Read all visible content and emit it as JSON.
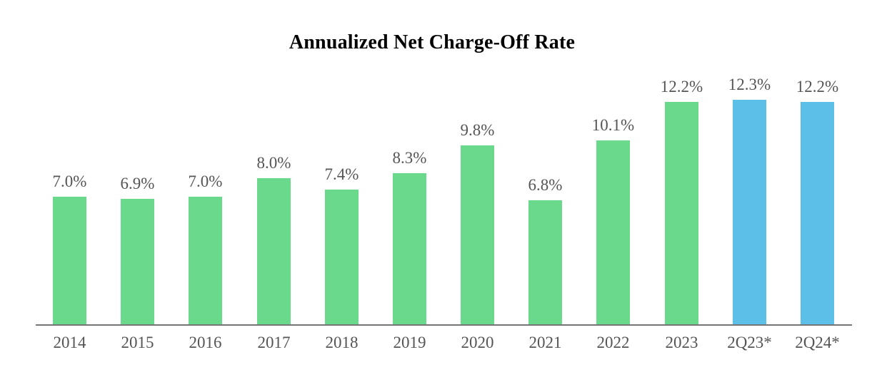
{
  "chart_data": {
    "type": "bar",
    "title": "Annualized Net Charge-Off Rate",
    "categories": [
      "2014",
      "2015",
      "2016",
      "2017",
      "2018",
      "2019",
      "2020",
      "2021",
      "2022",
      "2023",
      "2Q23*",
      "2Q24*"
    ],
    "values": [
      7.0,
      6.9,
      7.0,
      8.0,
      7.4,
      8.3,
      9.8,
      6.8,
      10.1,
      12.2,
      12.3,
      12.2
    ],
    "data_labels": [
      "7.0%",
      "6.9%",
      "7.0%",
      "8.0%",
      "7.4%",
      "8.3%",
      "9.8%",
      "6.8%",
      "10.1%",
      "12.2%",
      "12.3%",
      "12.2%"
    ],
    "bar_colors": [
      "#6bd98b",
      "#6bd98b",
      "#6bd98b",
      "#6bd98b",
      "#6bd98b",
      "#6bd98b",
      "#6bd98b",
      "#6bd98b",
      "#6bd98b",
      "#6bd98b",
      "#5bbfe7",
      "#5bbfe7"
    ],
    "xlabel": "",
    "ylabel": "",
    "ylim": [
      0,
      13.2
    ],
    "grid": "off",
    "legend": "none"
  },
  "colors": {
    "bar_green": "#6bd98b",
    "bar_blue": "#5bbfe7",
    "text_label": "#555555",
    "axis_line": "#757575",
    "background": "#ffffff"
  }
}
